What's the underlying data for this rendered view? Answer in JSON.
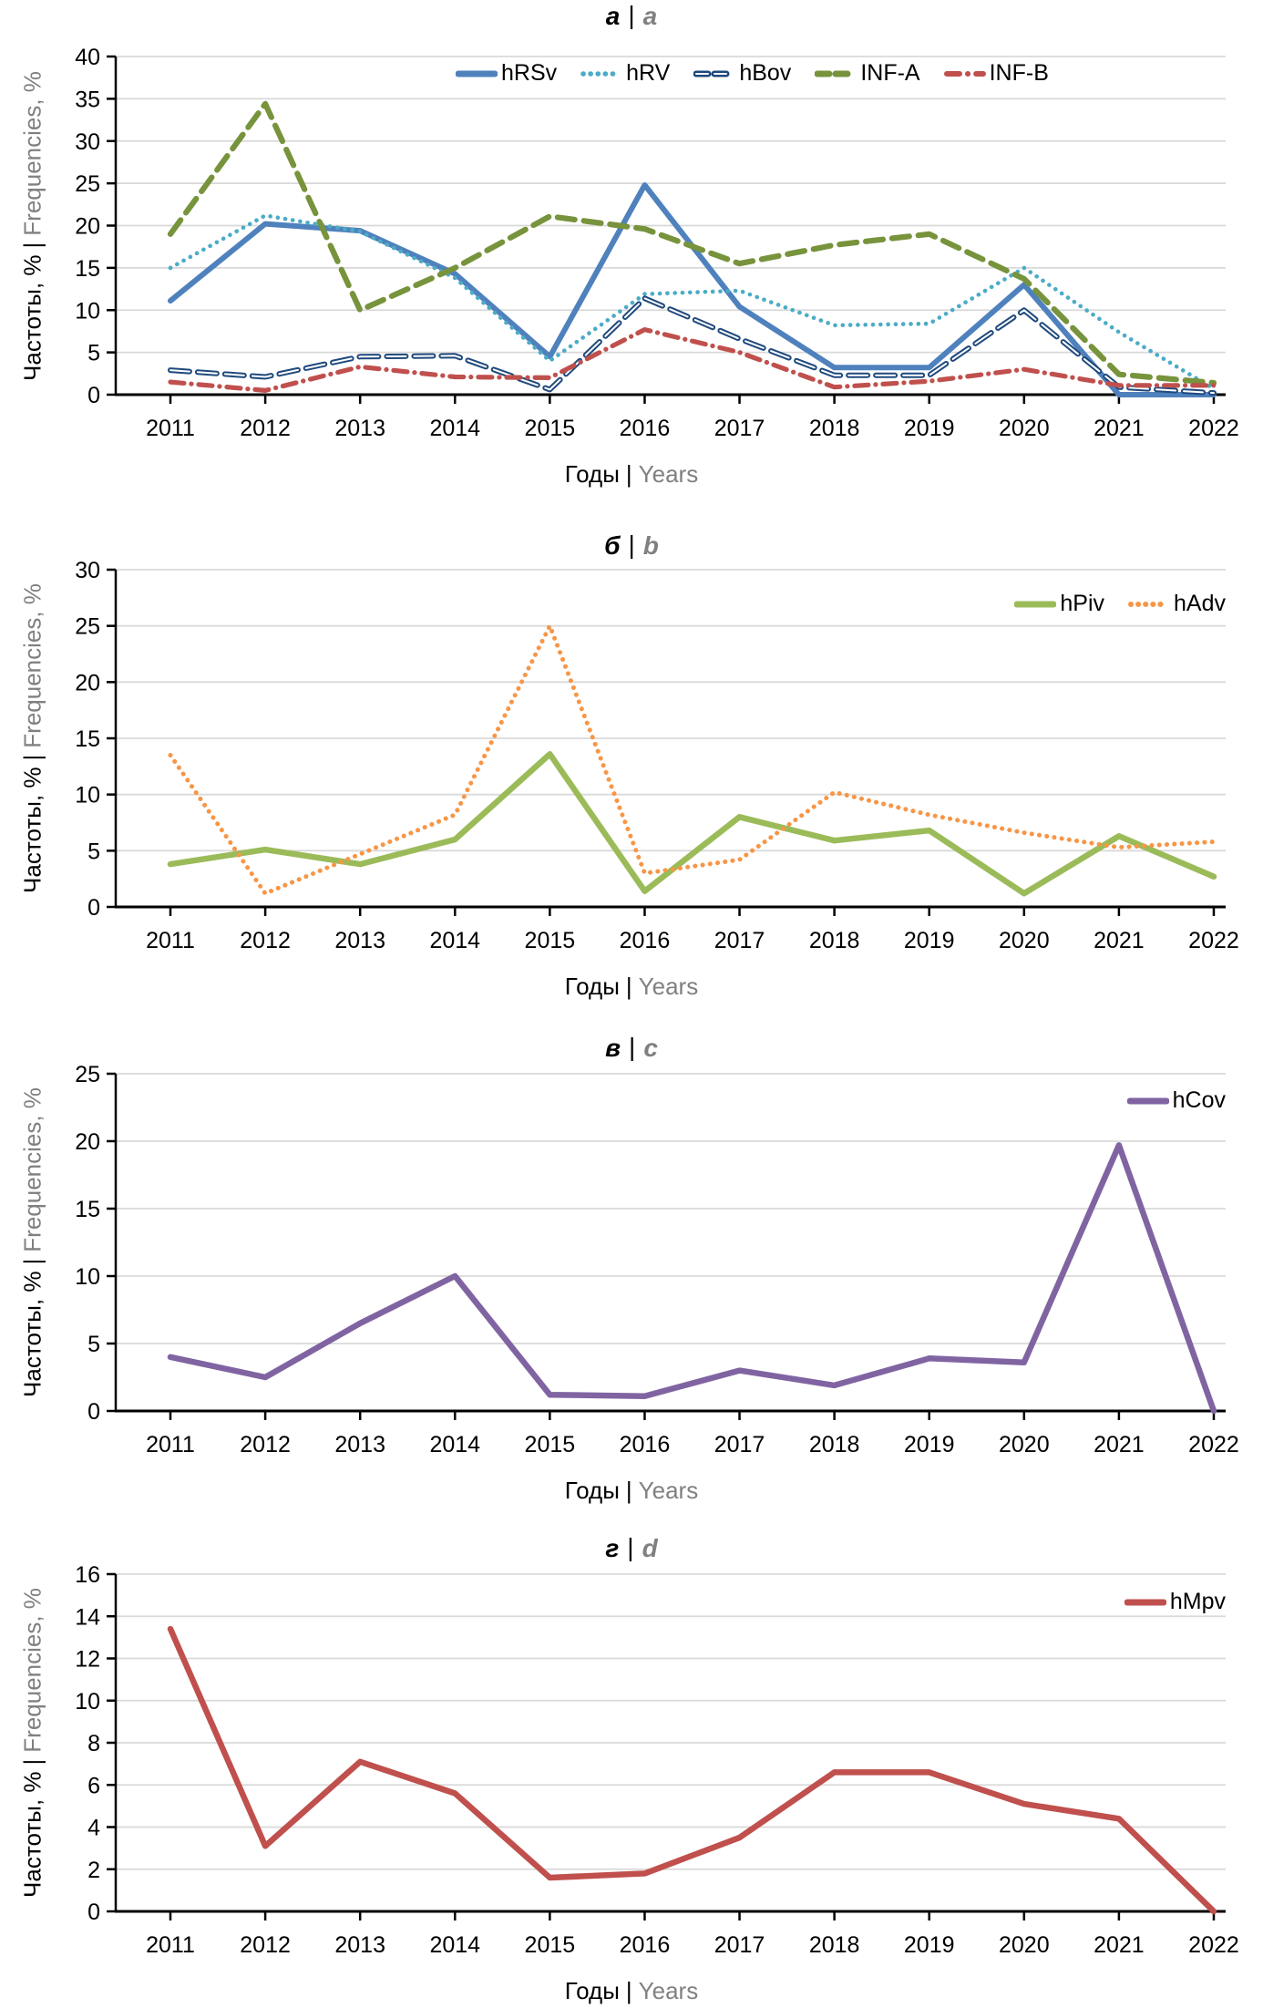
{
  "axis": {
    "y_title_ru": "Частоты, %",
    "y_title_en": "Frequencies, %",
    "x_title_ru": "Годы",
    "x_title_en": "Years",
    "divider": "|"
  },
  "theme": {
    "grid_color": "#D9D9D9",
    "axis_color": "#000000",
    "text_color": "#000000",
    "secondary_text_color": "#808080",
    "background": "#FFFFFF"
  },
  "chart_data": [
    {
      "type": "line",
      "panel_label_ru": "а",
      "panel_label_en": "a",
      "categories": [
        2011,
        2012,
        2013,
        2014,
        2015,
        2016,
        2017,
        2018,
        2019,
        2020,
        2021,
        2022
      ],
      "ylim": [
        0,
        40
      ],
      "ystep": 5,
      "grid": true,
      "legend_position": "top-inside",
      "series": [
        {
          "name": "hRSv",
          "color": "#4F81BD",
          "line_style": "solid",
          "width": 6,
          "values": [
            11.1,
            20.2,
            19.4,
            14.3,
            4.5,
            24.8,
            10.4,
            3.2,
            3.2,
            13.0,
            0.0,
            0.0
          ]
        },
        {
          "name": "hRV",
          "color": "#4BACC6",
          "line_style": "dotted",
          "width": 4.6,
          "values": [
            15.0,
            21.2,
            19.3,
            13.8,
            4.0,
            11.9,
            12.3,
            8.2,
            8.4,
            15.0,
            7.4,
            0.7
          ]
        },
        {
          "name": "hBov",
          "color": "#1F497D",
          "line_style": "dashed-outline",
          "width": 6,
          "values": [
            2.9,
            2.1,
            4.5,
            4.6,
            0.6,
            11.4,
            6.6,
            2.3,
            2.3,
            10.0,
            0.9,
            0.2
          ]
        },
        {
          "name": "INF-A",
          "color": "#77933C",
          "line_style": "dashed",
          "width": 6.2,
          "values": [
            19.0,
            34.4,
            10.0,
            15.0,
            21.1,
            19.6,
            15.5,
            17.7,
            19.0,
            13.7,
            2.4,
            1.4
          ]
        },
        {
          "name": "INF-B",
          "color": "#C0504D",
          "line_style": "dash-dot",
          "width": 5.2,
          "values": [
            1.5,
            0.5,
            3.3,
            2.1,
            2.0,
            7.7,
            5.0,
            0.9,
            1.6,
            3.0,
            1.1,
            1.1
          ]
        }
      ]
    },
    {
      "type": "line",
      "panel_label_ru": "б",
      "panel_label_en": "b",
      "categories": [
        2011,
        2012,
        2013,
        2014,
        2015,
        2016,
        2017,
        2018,
        2019,
        2020,
        2021,
        2022
      ],
      "ylim": [
        0,
        30
      ],
      "ystep": 5,
      "grid": true,
      "legend_position": "top-right-inside",
      "series": [
        {
          "name": "hPiv",
          "color": "#9BBB59",
          "line_style": "solid",
          "width": 6.5,
          "values": [
            3.8,
            5.1,
            3.8,
            6.0,
            13.6,
            1.4,
            8.0,
            5.9,
            6.8,
            1.2,
            6.3,
            2.7
          ]
        },
        {
          "name": "hAdv",
          "color": "#F79646",
          "line_style": "dotted",
          "width": 5.0,
          "values": [
            13.5,
            1.2,
            4.7,
            8.2,
            25.0,
            3.0,
            4.2,
            10.2,
            8.2,
            6.6,
            5.3,
            5.8
          ]
        }
      ]
    },
    {
      "type": "line",
      "panel_label_ru": "в",
      "panel_label_en": "c",
      "categories": [
        2011,
        2012,
        2013,
        2014,
        2015,
        2016,
        2017,
        2018,
        2019,
        2020,
        2021,
        2022
      ],
      "ylim": [
        0,
        25
      ],
      "ystep": 5,
      "grid": true,
      "legend_position": "top-right-inside",
      "series": [
        {
          "name": "hCov",
          "color": "#8064A2",
          "line_style": "solid",
          "width": 6.5,
          "values": [
            4.0,
            2.5,
            6.5,
            10.0,
            1.2,
            1.1,
            3.0,
            1.9,
            3.9,
            3.6,
            19.7,
            0.0
          ]
        }
      ]
    },
    {
      "type": "line",
      "panel_label_ru": "г",
      "panel_label_en": "d",
      "categories": [
        2011,
        2012,
        2013,
        2014,
        2015,
        2016,
        2017,
        2018,
        2019,
        2020,
        2021,
        2022
      ],
      "ylim": [
        0,
        16
      ],
      "ystep": 2,
      "grid": true,
      "legend_position": "top-right-inside",
      "series": [
        {
          "name": "hMpv",
          "color": "#C0504D",
          "line_style": "solid",
          "width": 6.5,
          "values": [
            13.4,
            3.1,
            7.1,
            5.6,
            1.6,
            1.8,
            3.5,
            6.6,
            6.6,
            5.1,
            4.4,
            0.0
          ]
        }
      ]
    }
  ]
}
